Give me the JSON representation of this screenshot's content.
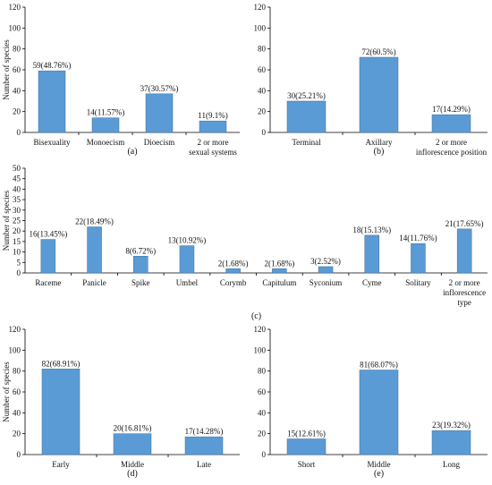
{
  "chart_data": [
    {
      "type": "bar",
      "panel_label": "(a)",
      "ylabel": "Number of species",
      "ylim": [
        0,
        120
      ],
      "yticks": [
        0,
        20,
        40,
        60,
        80,
        100,
        120
      ],
      "categories": [
        [
          "Bisexuality"
        ],
        [
          "Monoecism"
        ],
        [
          "Dioecism"
        ],
        [
          "2 or more",
          "sexual systems"
        ]
      ],
      "values": [
        59,
        14,
        37,
        11
      ],
      "data_labels": [
        "59(48.76%)",
        "14(11.57%)",
        "37(30.57%)",
        "11(9.1%)"
      ],
      "color": "#5b9bd5"
    },
    {
      "type": "bar",
      "panel_label": "(b)",
      "ylabel": "",
      "ylim": [
        0,
        120
      ],
      "yticks": [
        0,
        20,
        40,
        60,
        80,
        100,
        120
      ],
      "categories": [
        [
          "Terminal"
        ],
        [
          "Axillary"
        ],
        [
          "2 or more",
          "inflorescence position"
        ]
      ],
      "values": [
        30,
        72,
        17
      ],
      "data_labels": [
        "30(25.21%)",
        "72(60.5%)",
        "17(14.29%)"
      ],
      "color": "#5b9bd5"
    },
    {
      "type": "bar",
      "panel_label": "(c)",
      "ylabel": "Number of species",
      "ylim": [
        0,
        50
      ],
      "yticks": [
        0,
        5,
        10,
        15,
        20,
        25,
        30,
        35,
        40,
        45,
        50
      ],
      "categories": [
        [
          "Raceme"
        ],
        [
          "Panicle"
        ],
        [
          "Spike"
        ],
        [
          "Umbel"
        ],
        [
          "Corymb"
        ],
        [
          "Capitulum"
        ],
        [
          "Syconium"
        ],
        [
          "Cyme"
        ],
        [
          "Solitary"
        ],
        [
          "2 or more",
          "inflorescence",
          "type"
        ]
      ],
      "values": [
        16,
        22,
        8,
        13,
        2,
        2,
        3,
        18,
        14,
        21
      ],
      "data_labels": [
        "16(13.45%)",
        "22(18.49%)",
        "8(6.72%)",
        "13(10.92%)",
        "2(1.68%)",
        "2(1.68%)",
        "3(2.52%)",
        "18(15.13%)",
        "14(11.76%)",
        "21(17.65%)"
      ],
      "color": "#5b9bd5"
    },
    {
      "type": "bar",
      "panel_label": "(d)",
      "ylabel": "Number of species",
      "ylim": [
        0,
        120
      ],
      "yticks": [
        0,
        20,
        40,
        60,
        80,
        100,
        120
      ],
      "categories": [
        [
          "Early"
        ],
        [
          "Middle"
        ],
        [
          "Late"
        ]
      ],
      "values": [
        82,
        20,
        17
      ],
      "data_labels": [
        "82(68.91%)",
        "20(16.81%)",
        "17(14.28%)"
      ],
      "color": "#5b9bd5"
    },
    {
      "type": "bar",
      "panel_label": "(e)",
      "ylabel": "",
      "ylim": [
        0,
        120
      ],
      "yticks": [
        0,
        20,
        40,
        60,
        80,
        100,
        120
      ],
      "categories": [
        [
          "Short"
        ],
        [
          "Middle"
        ],
        [
          "Long"
        ]
      ],
      "values": [
        15,
        81,
        23
      ],
      "data_labels": [
        "15(12.61%)",
        "81(68.07%)",
        "23(19.32%)"
      ],
      "color": "#5b9bd5"
    }
  ]
}
